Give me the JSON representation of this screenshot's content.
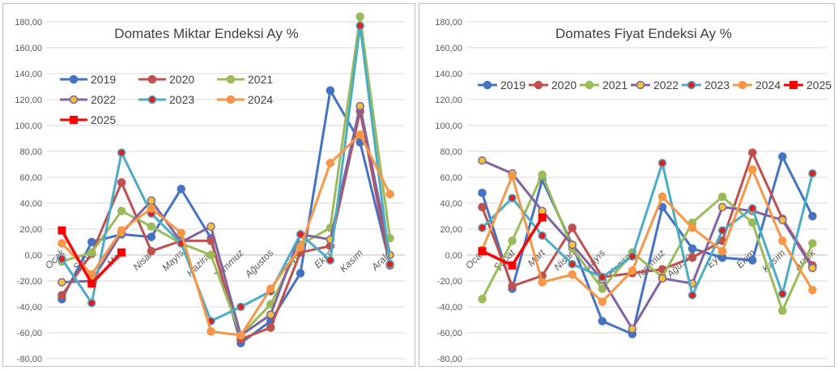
{
  "chart_data": [
    {
      "type": "line",
      "title": "Domates Miktar Endeksi Ay  %",
      "categories": [
        "Ocak",
        "Şubat",
        "Mart",
        "Nisan",
        "Mayıs",
        "Haziran",
        "Temmuz",
        "Ağustos",
        "Eylül",
        "Ekim",
        "Kasım",
        "Aralık"
      ],
      "ylim": [
        -80,
        180
      ],
      "yticks": [
        "-80,00",
        "-60,00",
        "-40,00",
        "-20,00",
        "0,00",
        "20,00",
        "40,00",
        "60,00",
        "80,00",
        "100,00",
        "120,00",
        "140,00",
        "160,00",
        "180,00"
      ],
      "legend_position": "top-left",
      "series": [
        {
          "name": "2019",
          "color": "#4472C4",
          "marker": "circle",
          "values": [
            -34,
            10,
            16,
            14,
            51,
            13,
            -68,
            -51,
            -14,
            127,
            87,
            -7
          ]
        },
        {
          "name": "2020",
          "color": "#C0504D",
          "marker": "circle",
          "values": [
            -31,
            1,
            56,
            3,
            11,
            11,
            -65,
            -56,
            2,
            7,
            111,
            -8
          ]
        },
        {
          "name": "2021",
          "color": "#9BBB59",
          "marker": "circle",
          "values": [
            -5,
            2,
            34,
            22,
            9,
            0,
            -62,
            -38,
            8,
            21,
            184,
            13
          ]
        },
        {
          "name": "2022",
          "color": "#8064A2",
          "marker": "circle",
          "values": [
            -21,
            -20,
            17,
            42,
            10,
            22,
            -62,
            -46,
            16,
            12,
            115,
            0
          ]
        },
        {
          "name": "2023",
          "color": "#4BACC6",
          "marker": "circle",
          "values": [
            -3,
            -37,
            79,
            32,
            9,
            -51,
            -40,
            -28,
            16,
            -4,
            177,
            -7
          ]
        },
        {
          "name": "2024",
          "color": "#F79646",
          "marker": "circle",
          "values": [
            9,
            -15,
            19,
            36,
            17,
            -59,
            -62,
            -26,
            6,
            71,
            93,
            47
          ]
        },
        {
          "name": "2025",
          "color": "#FF0000",
          "marker": "square",
          "values": [
            19,
            -22,
            2,
            null,
            null,
            null,
            null,
            null,
            null,
            null,
            null,
            null
          ]
        }
      ]
    },
    {
      "type": "line",
      "title": "Domates Fiyat Endeksi Ay %",
      "categories": [
        "Ocak",
        "Şubat",
        "Mart",
        "Nisan",
        "Mayıs",
        "Haziran",
        "Temmuz",
        "Ağustos",
        "Eylül",
        "Ekim",
        "Kasım",
        "Aralık"
      ],
      "ylim": [
        -80,
        180
      ],
      "yticks": [
        "-80,00",
        "-60,00",
        "-40,00",
        "-20,00",
        "0,00",
        "20,00",
        "40,00",
        "60,00",
        "80,00",
        "100,00",
        "120,00",
        "140,00",
        "160,00",
        "180,00"
      ],
      "legend_position": "top",
      "series": [
        {
          "name": "2019",
          "color": "#4472C4",
          "marker": "circle",
          "values": [
            48,
            -26,
            58,
            8,
            -51,
            -61,
            37,
            5,
            -2,
            -4,
            76,
            30
          ]
        },
        {
          "name": "2020",
          "color": "#C0504D",
          "marker": "circle",
          "values": [
            37,
            -24,
            -16,
            21,
            -17,
            -14,
            -11,
            -2,
            11,
            79,
            28,
            -8
          ]
        },
        {
          "name": "2021",
          "color": "#9BBB59",
          "marker": "circle",
          "values": [
            -34,
            11,
            62,
            5,
            -26,
            2,
            -17,
            25,
            45,
            25,
            -43,
            9
          ]
        },
        {
          "name": "2022",
          "color": "#8064A2",
          "marker": "circle",
          "values": [
            73,
            63,
            34,
            8,
            -19,
            -57,
            -18,
            -22,
            37,
            34,
            27,
            -10
          ]
        },
        {
          "name": "2023",
          "color": "#4BACC6",
          "marker": "circle",
          "values": [
            21,
            44,
            15,
            -7,
            -17,
            -1,
            71,
            -31,
            19,
            36,
            -30,
            63
          ]
        },
        {
          "name": "2024",
          "color": "#F79646",
          "marker": "circle",
          "values": [
            4,
            61,
            -21,
            -15,
            -36,
            -12,
            45,
            21,
            3,
            66,
            11,
            -27
          ]
        },
        {
          "name": "2025",
          "color": "#FF0000",
          "marker": "square",
          "values": [
            3,
            -8,
            29,
            null,
            null,
            null,
            null,
            null,
            null,
            null,
            null,
            null
          ]
        }
      ]
    }
  ]
}
